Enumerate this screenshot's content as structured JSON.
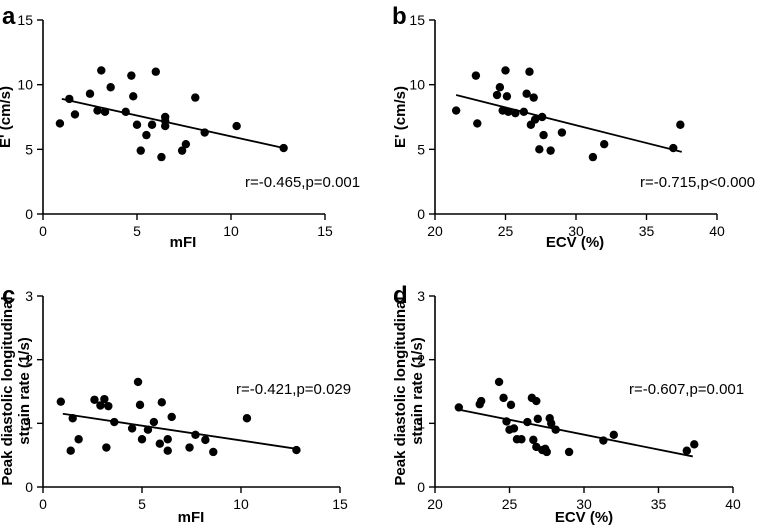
{
  "chart_data": [
    {
      "id": "a",
      "panel_label": "a",
      "type": "scatter",
      "xlabel": "mFI",
      "ylabel": "E' (cm/s)",
      "xlim": [
        0,
        15
      ],
      "ylim": [
        0,
        15
      ],
      "xticks": [
        0,
        5,
        10,
        15
      ],
      "yticks": [
        0,
        5,
        10,
        15
      ],
      "annotation": "r=-0.465,p=0.001",
      "fit_line": [
        [
          1.0,
          8.9
        ],
        [
          12.8,
          5.1
        ]
      ],
      "points": [
        [
          0.9,
          7.0
        ],
        [
          1.4,
          8.9
        ],
        [
          1.7,
          7.7
        ],
        [
          2.5,
          9.3
        ],
        [
          2.9,
          8.0
        ],
        [
          3.1,
          11.1
        ],
        [
          3.3,
          7.9
        ],
        [
          3.6,
          9.8
        ],
        [
          4.4,
          7.9
        ],
        [
          4.7,
          10.7
        ],
        [
          4.8,
          9.1
        ],
        [
          5.0,
          6.9
        ],
        [
          5.2,
          4.9
        ],
        [
          5.5,
          6.1
        ],
        [
          5.8,
          6.9
        ],
        [
          6.0,
          11.0
        ],
        [
          6.3,
          4.4
        ],
        [
          6.5,
          7.5
        ],
        [
          6.5,
          7.2
        ],
        [
          6.5,
          6.8
        ],
        [
          7.4,
          4.9
        ],
        [
          7.6,
          5.4
        ],
        [
          8.1,
          9.0
        ],
        [
          8.6,
          6.3
        ],
        [
          10.3,
          6.8
        ],
        [
          12.8,
          5.1
        ]
      ]
    },
    {
      "id": "b",
      "panel_label": "b",
      "type": "scatter",
      "xlabel": "ECV (%)",
      "ylabel": "E' (cm/s)",
      "xlim": [
        20,
        40
      ],
      "ylim": [
        0,
        15
      ],
      "xticks": [
        20,
        25,
        30,
        35,
        40
      ],
      "yticks": [
        0,
        5,
        10,
        15
      ],
      "annotation": "r=-0.715,p<0.000",
      "fit_line": [
        [
          21.5,
          9.2
        ],
        [
          37.5,
          4.8
        ]
      ],
      "points": [
        [
          21.5,
          8.0
        ],
        [
          22.9,
          10.7
        ],
        [
          23.0,
          7.0
        ],
        [
          24.4,
          9.2
        ],
        [
          24.6,
          9.8
        ],
        [
          24.8,
          8.0
        ],
        [
          25.0,
          11.1
        ],
        [
          25.1,
          9.1
        ],
        [
          25.2,
          7.9
        ],
        [
          25.7,
          7.8
        ],
        [
          26.3,
          7.9
        ],
        [
          26.5,
          9.3
        ],
        [
          26.7,
          11.0
        ],
        [
          26.8,
          6.9
        ],
        [
          27.0,
          9.0
        ],
        [
          27.1,
          7.3
        ],
        [
          27.4,
          5.0
        ],
        [
          27.6,
          7.5
        ],
        [
          27.7,
          6.1
        ],
        [
          28.2,
          4.9
        ],
        [
          29.0,
          6.3
        ],
        [
          31.2,
          4.4
        ],
        [
          32.0,
          5.4
        ],
        [
          36.9,
          5.1
        ],
        [
          37.4,
          6.9
        ]
      ]
    },
    {
      "id": "c",
      "panel_label": "c",
      "type": "scatter",
      "xlabel": "mFI",
      "ylabel": "Peak diastolic longitudinal strain rate (1/s)",
      "xlim": [
        0,
        15
      ],
      "ylim": [
        0,
        3
      ],
      "xticks": [
        0,
        5,
        10,
        15
      ],
      "yticks": [
        0,
        1,
        2,
        3
      ],
      "annotation": "r=-0.421,p=0.029",
      "fit_line": [
        [
          1.0,
          1.15
        ],
        [
          12.8,
          0.6
        ]
      ],
      "points": [
        [
          0.9,
          1.34
        ],
        [
          1.4,
          0.57
        ],
        [
          1.5,
          1.08
        ],
        [
          1.8,
          0.75
        ],
        [
          2.6,
          1.37
        ],
        [
          2.9,
          1.28
        ],
        [
          3.1,
          1.38
        ],
        [
          3.2,
          0.62
        ],
        [
          3.3,
          1.27
        ],
        [
          3.6,
          1.02
        ],
        [
          4.5,
          0.92
        ],
        [
          4.8,
          1.65
        ],
        [
          4.9,
          1.29
        ],
        [
          5.0,
          0.75
        ],
        [
          5.3,
          0.9
        ],
        [
          5.6,
          1.02
        ],
        [
          5.9,
          0.68
        ],
        [
          6.0,
          1.33
        ],
        [
          6.3,
          0.57
        ],
        [
          6.3,
          0.75
        ],
        [
          6.5,
          1.1
        ],
        [
          7.4,
          0.62
        ],
        [
          7.7,
          0.82
        ],
        [
          8.2,
          0.74
        ],
        [
          8.6,
          0.55
        ],
        [
          10.3,
          1.08
        ],
        [
          12.8,
          0.58
        ]
      ]
    },
    {
      "id": "d",
      "panel_label": "d",
      "type": "scatter",
      "xlabel": "ECV (%)",
      "ylabel": "Peak diastolic longitudinal strain rate (1/s)",
      "xlim": [
        20,
        40
      ],
      "ylim": [
        0,
        3
      ],
      "xticks": [
        20,
        25,
        30,
        35,
        40
      ],
      "yticks": [
        0,
        1,
        2,
        3
      ],
      "annotation": "r=-0.607,p=0.001",
      "fit_line": [
        [
          21.5,
          1.22
        ],
        [
          37.3,
          0.48
        ]
      ],
      "points": [
        [
          21.6,
          1.25
        ],
        [
          23.0,
          1.3
        ],
        [
          23.1,
          1.35
        ],
        [
          24.3,
          1.65
        ],
        [
          24.6,
          1.4
        ],
        [
          24.8,
          1.03
        ],
        [
          25.0,
          0.9
        ],
        [
          25.1,
          1.29
        ],
        [
          25.3,
          0.92
        ],
        [
          25.5,
          0.75
        ],
        [
          25.8,
          0.75
        ],
        [
          26.2,
          1.02
        ],
        [
          26.5,
          1.4
        ],
        [
          26.6,
          0.74
        ],
        [
          26.8,
          1.35
        ],
        [
          26.8,
          0.63
        ],
        [
          26.9,
          1.07
        ],
        [
          27.2,
          0.58
        ],
        [
          27.4,
          0.6
        ],
        [
          27.5,
          0.55
        ],
        [
          27.7,
          1.08
        ],
        [
          27.8,
          1.0
        ],
        [
          28.1,
          0.9
        ],
        [
          29.0,
          0.55
        ],
        [
          31.3,
          0.73
        ],
        [
          32.0,
          0.82
        ],
        [
          36.9,
          0.57
        ],
        [
          37.4,
          0.67
        ]
      ]
    }
  ]
}
